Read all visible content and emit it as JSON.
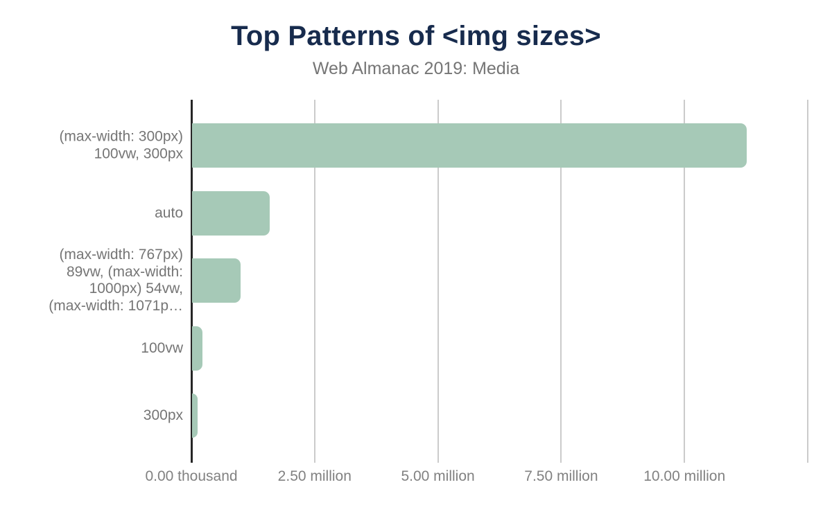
{
  "chart_data": {
    "type": "bar",
    "orientation": "horizontal",
    "title": "Top Patterns of <img sizes>",
    "subtitle": "Web Almanac 2019: Media",
    "categories": [
      "(max-width: 300px) 100vw, 300px",
      "auto",
      "(max-width: 767px) 89vw, (max-width: 1000px) 54vw, (max-width: 1071p…",
      "100vw",
      "300px"
    ],
    "category_label_lines": [
      [
        "(max-width: 300px)",
        "100vw, 300px"
      ],
      [
        "auto"
      ],
      [
        "(max-width: 767px)",
        "89vw, (max-width:",
        "1000px) 54vw,",
        "(max-width: 1071p…"
      ],
      [
        "100vw"
      ],
      [
        "300px"
      ]
    ],
    "values": [
      11250000,
      1570000,
      980000,
      210000,
      110000
    ],
    "x_axis": {
      "ticks": [
        {
          "value": 0,
          "label": "0.00 thousand"
        },
        {
          "value": 2500000,
          "label": "2.50 million"
        },
        {
          "value": 5000000,
          "label": "5.00 million"
        },
        {
          "value": 7500000,
          "label": "7.50 million"
        },
        {
          "value": 10000000,
          "label": "10.00 million"
        },
        {
          "value": 12500000,
          "label": ""
        }
      ],
      "max_visible": 12700000,
      "grid": true
    },
    "legend": null,
    "colors": {
      "bar": "#a6c9b7",
      "grid": "#cbcbcb",
      "axis": "#262626",
      "labels": "#757575",
      "title": "#172b4d"
    }
  }
}
